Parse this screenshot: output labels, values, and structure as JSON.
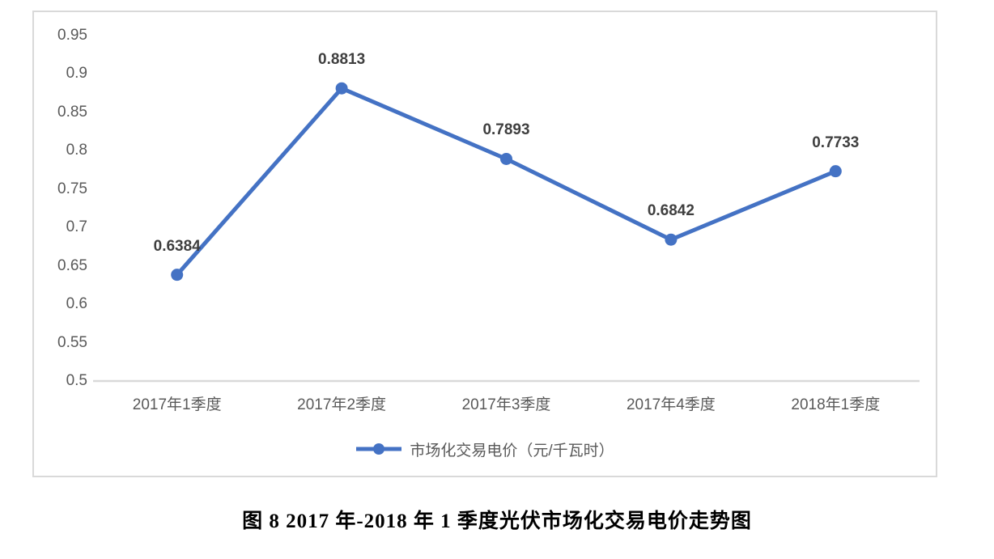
{
  "chart_data": {
    "type": "line",
    "categories": [
      "2017年1季度",
      "2017年2季度",
      "2017年3季度",
      "2017年4季度",
      "2018年1季度"
    ],
    "series": [
      {
        "name": "市场化交易电价（元/千瓦时）",
        "values": [
          0.6384,
          0.8813,
          0.7893,
          0.6842,
          0.7733
        ],
        "color": "#4472C4",
        "marker": "circle"
      }
    ],
    "data_labels": [
      "0.6384",
      "0.8813",
      "0.7893",
      "0.6842",
      "0.7733"
    ],
    "title": "",
    "xlabel": "",
    "ylabel": "",
    "ylim": [
      0.5,
      0.95
    ],
    "ytick_step": 0.05,
    "ytick_labels": [
      "0.5",
      "0.55",
      "0.6",
      "0.65",
      "0.7",
      "0.75",
      "0.8",
      "0.85",
      "0.9",
      "0.95"
    ],
    "grid": false,
    "legend_position": "bottom"
  },
  "legend": {
    "items": [
      {
        "label": "市场化交易电价（元/千瓦时）",
        "marker": "line-with-dot",
        "color": "#4472C4"
      }
    ]
  },
  "caption": "图 8 2017 年-2018 年 1 季度光伏市场化交易电价走势图",
  "colors": {
    "line": "#4472C4",
    "axis_line": "#d9d9d9",
    "chart_border": "#d9d9d9",
    "tick_text": "#595959",
    "data_label_text": "#3f3f3f"
  }
}
